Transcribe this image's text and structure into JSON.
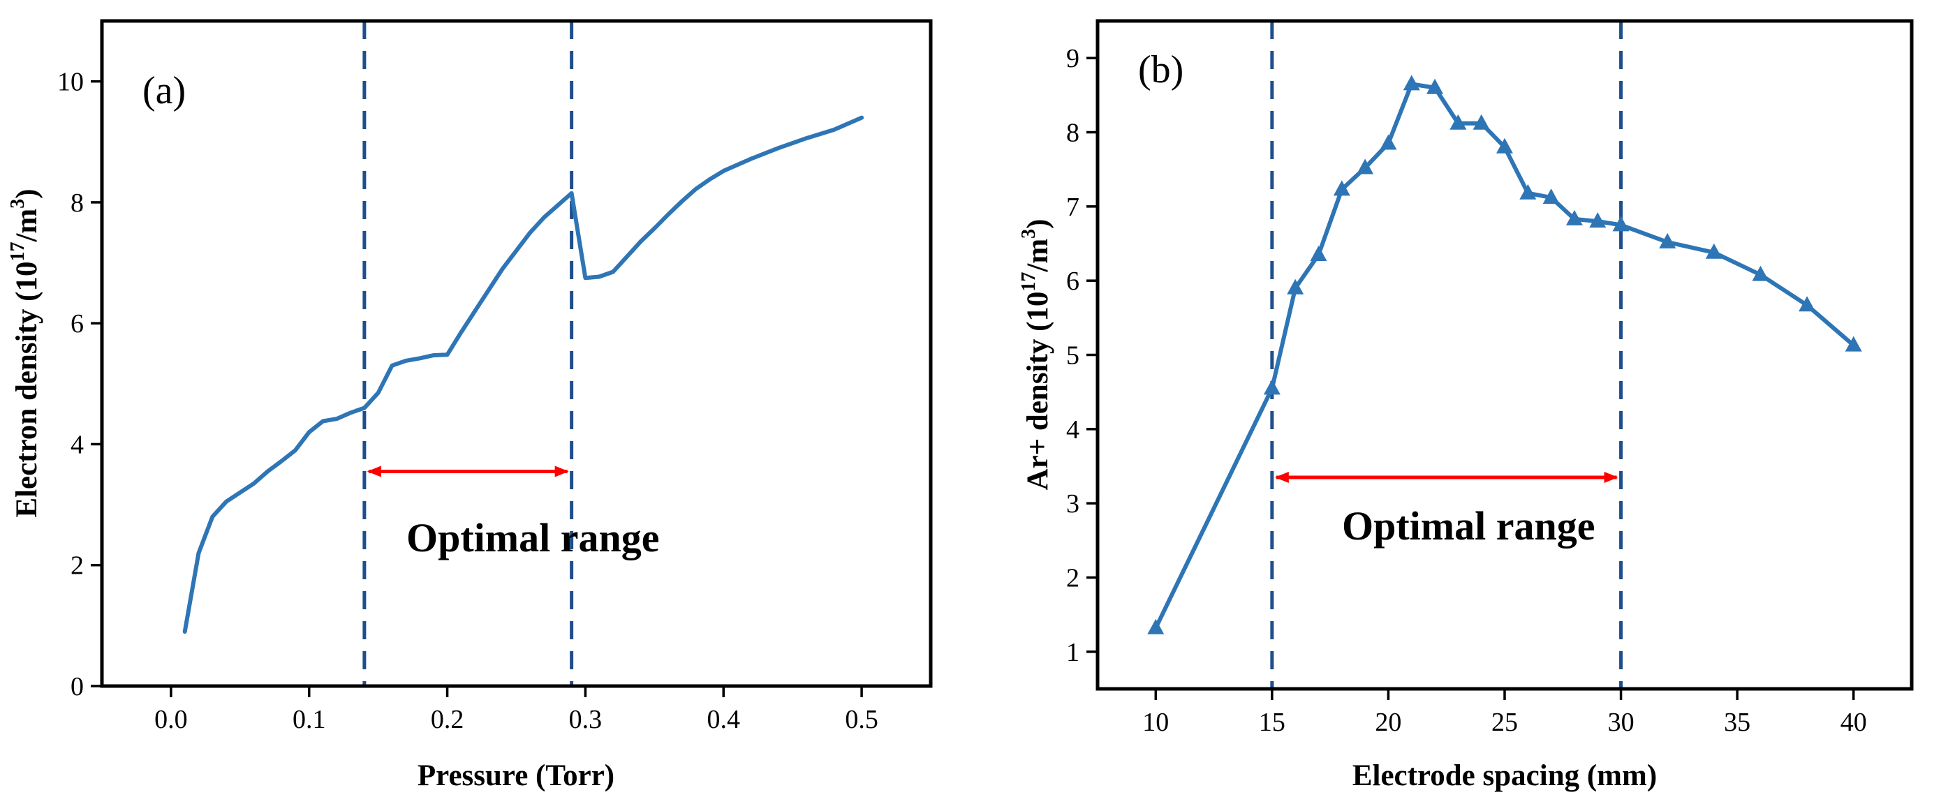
{
  "chart_data": [
    {
      "id": "a",
      "type": "line",
      "panel_label": "(a)",
      "xlabel": "Pressure (Torr)",
      "ylabel": "Electron density (10¹⁷/m³)",
      "ylabel_main": "Electron density (10",
      "ylabel_exp": "17",
      "ylabel_mid": "/m",
      "ylabel_exp2": "3",
      "ylabel_end": ")",
      "xlim": [
        -0.05,
        0.55
      ],
      "ylim": [
        0,
        11
      ],
      "xticks": [
        0.0,
        0.1,
        0.2,
        0.3,
        0.4,
        0.5
      ],
      "xtick_labels": [
        "0.0",
        "0.1",
        "0.2",
        "0.3",
        "0.4",
        "0.5"
      ],
      "yticks": [
        0,
        2,
        4,
        6,
        8,
        10
      ],
      "ytick_labels": [
        "0",
        "2",
        "4",
        "6",
        "8",
        "10"
      ],
      "series": [
        {
          "name": "Electron density",
          "color": "#2e75b6",
          "marker": "none",
          "x": [
            0.01,
            0.02,
            0.03,
            0.04,
            0.05,
            0.06,
            0.07,
            0.08,
            0.09,
            0.1,
            0.11,
            0.12,
            0.13,
            0.14,
            0.15,
            0.16,
            0.17,
            0.18,
            0.19,
            0.2,
            0.21,
            0.22,
            0.23,
            0.24,
            0.25,
            0.26,
            0.27,
            0.28,
            0.29,
            0.3,
            0.31,
            0.32,
            0.33,
            0.34,
            0.35,
            0.36,
            0.37,
            0.38,
            0.39,
            0.4,
            0.42,
            0.44,
            0.46,
            0.48,
            0.5
          ],
          "y": [
            0.9,
            2.2,
            2.8,
            3.05,
            3.2,
            3.35,
            3.55,
            3.72,
            3.9,
            4.2,
            4.38,
            4.42,
            4.52,
            4.6,
            4.85,
            5.3,
            5.38,
            5.42,
            5.47,
            5.48,
            5.85,
            6.2,
            6.55,
            6.9,
            7.2,
            7.5,
            7.75,
            7.95,
            8.15,
            6.75,
            6.77,
            6.85,
            7.1,
            7.35,
            7.57,
            7.8,
            8.02,
            8.22,
            8.38,
            8.52,
            8.72,
            8.9,
            9.06,
            9.2,
            9.4
          ]
        }
      ],
      "vlines": [
        0.14,
        0.29
      ],
      "vline_color": "#1f4e8c",
      "range_arrow": {
        "from": 0.14,
        "to": 0.29,
        "y": 3.55,
        "color": "#ff0000"
      },
      "annotation": "Optimal range"
    },
    {
      "id": "b",
      "type": "line",
      "panel_label": "(b)",
      "xlabel": "Electrode spacing (mm)",
      "ylabel": "Ar+ density (10¹⁷/m³)",
      "ylabel_main": "Ar+ density (10",
      "ylabel_exp": "17",
      "ylabel_mid": "/m",
      "ylabel_exp2": "3",
      "ylabel_end": ")",
      "xlim": [
        7.5,
        42.5
      ],
      "ylim": [
        0.5,
        9.5
      ],
      "xticks": [
        10,
        15,
        20,
        25,
        30,
        35,
        40
      ],
      "xtick_labels": [
        "10",
        "15",
        "20",
        "25",
        "30",
        "35",
        "40"
      ],
      "yticks": [
        1,
        2,
        3,
        4,
        5,
        6,
        7,
        8,
        9
      ],
      "ytick_labels": [
        "1",
        "2",
        "3",
        "4",
        "5",
        "6",
        "7",
        "8",
        "9"
      ],
      "series": [
        {
          "name": "Ar+ density",
          "color": "#2e75b6",
          "marker": "triangle",
          "x": [
            10,
            15,
            16,
            17,
            18,
            19,
            20,
            21,
            22,
            23,
            24,
            25,
            26,
            27,
            28,
            29,
            30,
            32,
            34,
            36,
            38,
            40
          ],
          "y": [
            1.32,
            4.55,
            5.9,
            6.35,
            7.23,
            7.52,
            7.85,
            8.65,
            8.6,
            8.12,
            8.12,
            7.8,
            7.18,
            7.12,
            6.83,
            6.8,
            6.75,
            6.52,
            6.38,
            6.08,
            5.67,
            5.13
          ]
        }
      ],
      "vlines": [
        15,
        30
      ],
      "vline_color": "#1f4e8c",
      "range_arrow": {
        "from": 15,
        "to": 30,
        "y": 3.35,
        "color": "#ff0000"
      },
      "annotation": "Optimal range"
    }
  ]
}
